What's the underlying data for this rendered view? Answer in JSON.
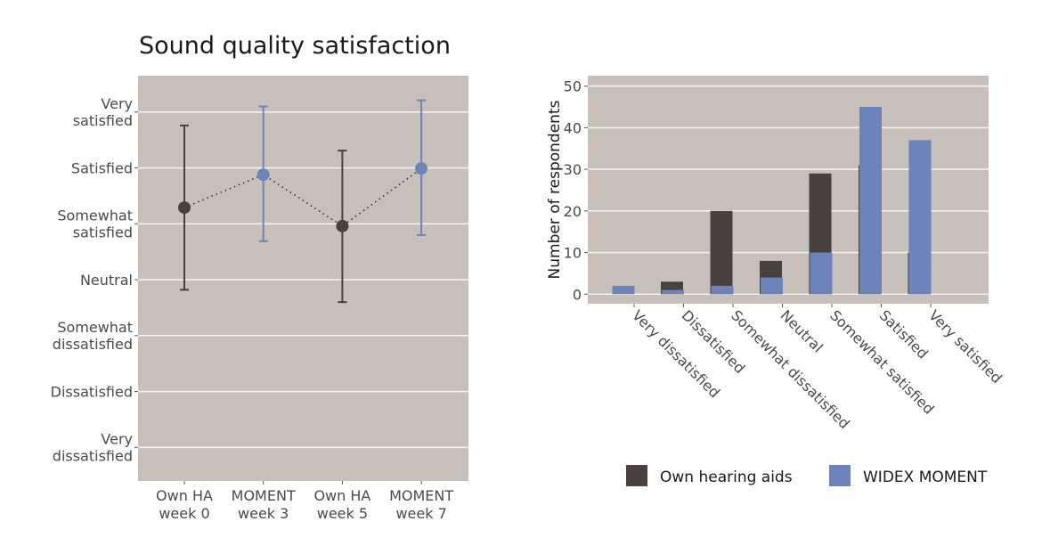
{
  "colors": {
    "panel_bg": "#c7c0ba",
    "grid": "#f4f0ec",
    "own": "#47423f",
    "moment": "#6d84bb",
    "tick_text": "#4a4a4a"
  },
  "chart_data": [
    {
      "type": "errorbar",
      "title": "Sound quality satisfaction",
      "xlabel": "",
      "ylabel": "",
      "y_levels": [
        "Very dissatisfied",
        "Dissatisfied",
        "Somewhat dissatisfied",
        "Neutral",
        "Somewhat satisfied",
        "Satisfied",
        "Very satisfied"
      ],
      "y_tick_lines": [
        [
          "Very",
          "dissatisfied"
        ],
        [
          "Dissatisfied"
        ],
        [
          "Somewhat",
          "dissatisfied"
        ],
        [
          "Neutral"
        ],
        [
          "Somewhat",
          "satisfied"
        ],
        [
          "Satisfied"
        ],
        [
          "Very",
          "satisfied"
        ]
      ],
      "ylim": [
        0.4,
        7.65
      ],
      "grid": true,
      "categories": [
        {
          "line1": "Own HA",
          "line2": "week 0",
          "series": "own"
        },
        {
          "line1": "MOMENT",
          "line2": "week 3",
          "series": "moment"
        },
        {
          "line1": "Own HA",
          "line2": "week 5",
          "series": "own"
        },
        {
          "line1": "MOMENT",
          "line2": "week 7",
          "series": "moment"
        }
      ],
      "mean": [
        5.29,
        5.88,
        4.96,
        5.99
      ],
      "lower": [
        3.82,
        4.69,
        3.6,
        4.8
      ],
      "upper": [
        6.76,
        7.1,
        6.31,
        7.21
      ],
      "connector": "dotted"
    },
    {
      "type": "bar",
      "title": "",
      "xlabel": "",
      "ylabel": "Number of respondents",
      "ylim": [
        -2.3,
        52.5
      ],
      "yticks": [
        0,
        10,
        20,
        30,
        40,
        50
      ],
      "grid": true,
      "categories": [
        "Very dissatisfied",
        "Dissatisfied",
        "Somewhat dissatisfied",
        "Neutral",
        "Somewhat satisfied",
        "Satisfied",
        "Very satisfied"
      ],
      "series": [
        {
          "key": "own",
          "name": "Own hearing aids",
          "values": [
            0,
            3,
            20,
            8,
            29,
            31,
            10
          ]
        },
        {
          "key": "moment",
          "name": "WIDEX MOMENT",
          "values": [
            2,
            1,
            2,
            4,
            10,
            45,
            37
          ]
        }
      ],
      "legend_position": "bottom"
    }
  ]
}
